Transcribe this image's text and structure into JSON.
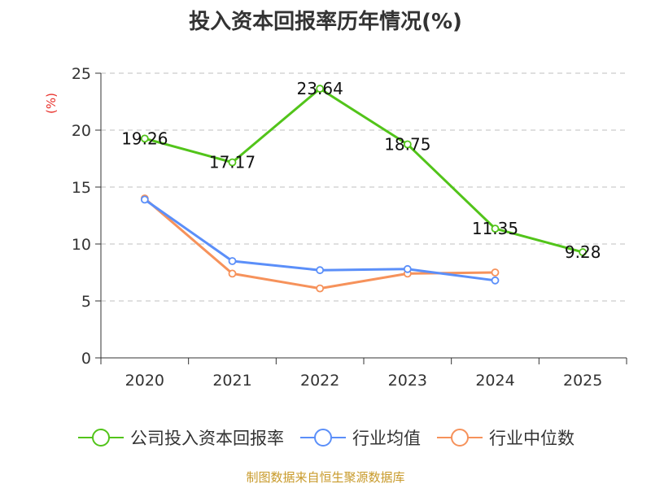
{
  "chart_data": {
    "type": "line",
    "title": "投入资本回报率历年情况(%)",
    "ylabel": "(%)",
    "xlabel": "",
    "categories": [
      "2020",
      "2021",
      "2022",
      "2023",
      "2024",
      "2025"
    ],
    "ylim": [
      0,
      25
    ],
    "yticks": [
      0,
      5,
      10,
      15,
      20,
      25
    ],
    "grid": true,
    "legend_position": "bottom",
    "series": [
      {
        "name": "公司投入资本回报率",
        "color": "#52c41a",
        "values": [
          19.26,
          17.17,
          23.64,
          18.75,
          11.35,
          9.28
        ],
        "labels": [
          "19.26",
          "17.17",
          "23.64",
          "18.75",
          "11.35",
          "9.28"
        ]
      },
      {
        "name": "行业均值",
        "color": "#5b8ff9",
        "values": [
          13.9,
          8.5,
          7.7,
          7.8,
          6.8,
          null
        ]
      },
      {
        "name": "行业中位数",
        "color": "#f6925b",
        "values": [
          14.0,
          7.4,
          6.1,
          7.4,
          7.5,
          null
        ]
      }
    ]
  },
  "source_note": "制图数据来自恒生聚源数据库"
}
